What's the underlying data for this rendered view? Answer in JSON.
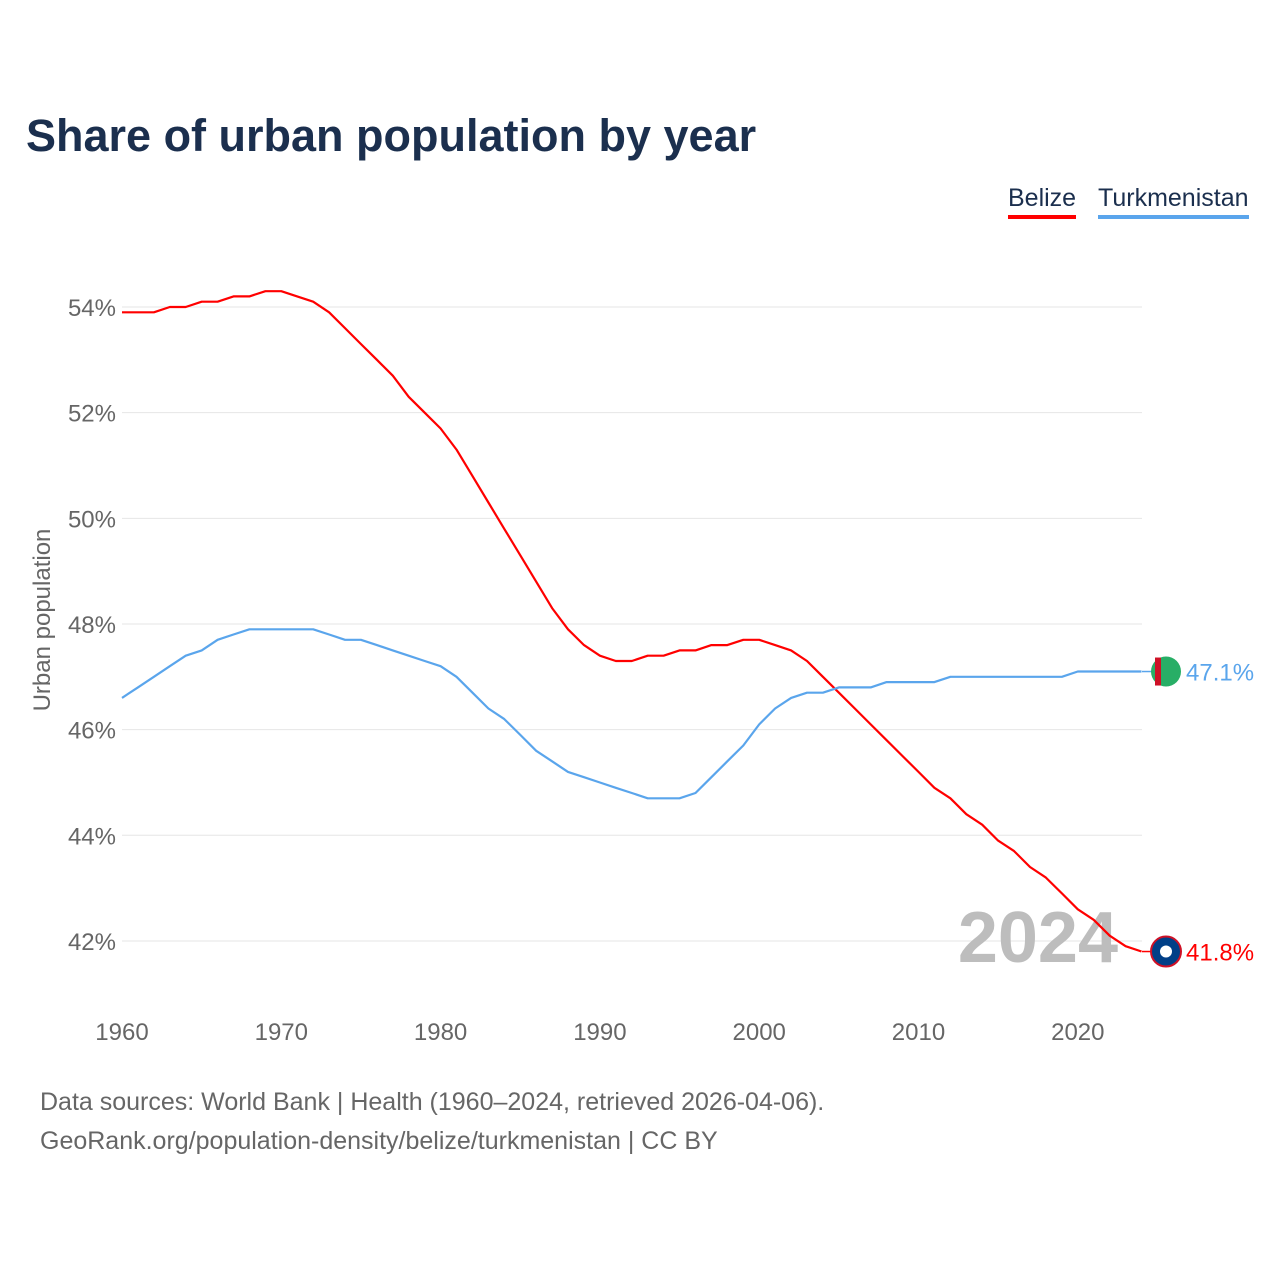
{
  "chart_data": {
    "type": "line",
    "title": "Share of urban population by year",
    "xlabel": "",
    "ylabel": "Urban population",
    "xlim": [
      1960,
      2024
    ],
    "ylim": [
      41.2,
      54.7
    ],
    "yticks": [
      42,
      44,
      46,
      48,
      50,
      52,
      54
    ],
    "ytick_labels": [
      "42%",
      "44%",
      "46%",
      "48%",
      "50%",
      "52%",
      "54%"
    ],
    "xticks": [
      1960,
      1970,
      1980,
      1990,
      2000,
      2010,
      2020
    ],
    "xtick_labels": [
      "1960",
      "1970",
      "1980",
      "1990",
      "2000",
      "2010",
      "2020"
    ],
    "grid": true,
    "legend": "top-right",
    "year_watermark": "2024",
    "series": [
      {
        "name": "Belize",
        "color": "#ff0000",
        "end_label": "41.8%",
        "values": [
          53.9,
          53.9,
          53.9,
          54.0,
          54.0,
          54.1,
          54.1,
          54.2,
          54.2,
          54.3,
          54.3,
          54.2,
          54.1,
          53.9,
          53.6,
          53.3,
          53.0,
          52.7,
          52.3,
          52.0,
          51.7,
          51.3,
          50.8,
          50.3,
          49.8,
          49.3,
          48.8,
          48.3,
          47.9,
          47.6,
          47.4,
          47.3,
          47.3,
          47.4,
          47.4,
          47.5,
          47.5,
          47.6,
          47.6,
          47.7,
          47.7,
          47.6,
          47.5,
          47.3,
          47.0,
          46.7,
          46.4,
          46.1,
          45.8,
          45.5,
          45.2,
          44.9,
          44.7,
          44.4,
          44.2,
          43.9,
          43.7,
          43.4,
          43.2,
          42.9,
          42.6,
          42.4,
          42.1,
          41.9,
          41.8
        ]
      },
      {
        "name": "Turkmenistan",
        "color": "#5aa5ec",
        "end_label": "47.1%",
        "values": [
          46.6,
          46.8,
          47.0,
          47.2,
          47.4,
          47.5,
          47.7,
          47.8,
          47.9,
          47.9,
          47.9,
          47.9,
          47.9,
          47.8,
          47.7,
          47.7,
          47.6,
          47.5,
          47.4,
          47.3,
          47.2,
          47.0,
          46.7,
          46.4,
          46.2,
          45.9,
          45.6,
          45.4,
          45.2,
          45.1,
          45.0,
          44.9,
          44.8,
          44.7,
          44.7,
          44.7,
          44.8,
          45.1,
          45.4,
          45.7,
          46.1,
          46.4,
          46.6,
          46.7,
          46.7,
          46.8,
          46.8,
          46.8,
          46.9,
          46.9,
          46.9,
          46.9,
          47.0,
          47.0,
          47.0,
          47.0,
          47.0,
          47.0,
          47.0,
          47.0,
          47.1,
          47.1,
          47.1,
          47.1,
          47.1
        ]
      }
    ]
  },
  "footer": {
    "line1": "Data sources: World Bank | Health (1960–2024, retrieved 2026-04-06).",
    "line2": "GeoRank.org/population-density/belize/turkmenistan | CC BY"
  }
}
